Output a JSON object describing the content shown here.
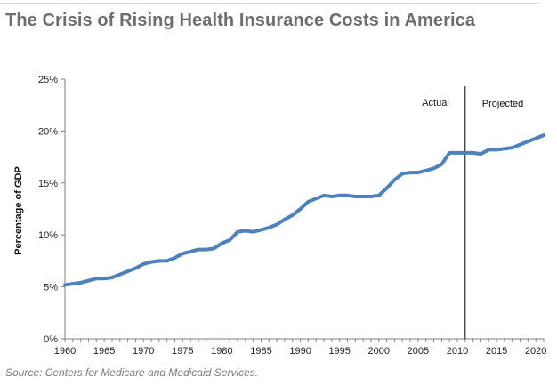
{
  "header": {
    "title": "The Crisis of Rising Health Insurance Costs in America"
  },
  "source": "Source: Centers for Medicare and Medicaid Services.",
  "colors": {
    "line": "#4f81bd",
    "title": "#6e6e6e",
    "axis": "#7f7f7f",
    "divider": "#000000",
    "source": "#7a7a7a"
  },
  "chart_data": {
    "type": "line",
    "title": "",
    "ylabel": "Percentage of GDP",
    "xlabel": "",
    "xlim": [
      1960,
      2021
    ],
    "ylim": [
      0,
      25
    ],
    "y_ticks": [
      {
        "value": 0,
        "label": "0%"
      },
      {
        "value": 5,
        "label": "5%"
      },
      {
        "value": 10,
        "label": "10%"
      },
      {
        "value": 15,
        "label": "15%"
      },
      {
        "value": 20,
        "label": "20%"
      },
      {
        "value": 25,
        "label": "25%"
      }
    ],
    "x_ticks": [
      {
        "value": 1960,
        "label": "1960"
      },
      {
        "value": 1965,
        "label": "1965"
      },
      {
        "value": 1970,
        "label": "1970"
      },
      {
        "value": 1975,
        "label": "1975"
      },
      {
        "value": 1980,
        "label": "1980"
      },
      {
        "value": 1985,
        "label": "1985"
      },
      {
        "value": 1990,
        "label": "1990"
      },
      {
        "value": 1995,
        "label": "1995"
      },
      {
        "value": 2000,
        "label": "2000"
      },
      {
        "value": 2005,
        "label": "2005"
      },
      {
        "value": 2010,
        "label": "2010"
      },
      {
        "value": 2015,
        "label": "2015"
      },
      {
        "value": 2020,
        "label": "2020"
      }
    ],
    "grid": false,
    "legend": "none",
    "divider": {
      "x": 2011,
      "left_label": "Actual",
      "right_label": "Projected"
    },
    "series": [
      {
        "x": [
          1960,
          1961,
          1962,
          1963,
          1964,
          1965,
          1966,
          1967,
          1968,
          1969,
          1970,
          1971,
          1972,
          1973,
          1974,
          1975,
          1976,
          1977,
          1978,
          1979,
          1980,
          1981,
          1982,
          1983,
          1984,
          1985,
          1986,
          1987,
          1988,
          1989,
          1990,
          1991,
          1992,
          1993,
          1994,
          1995,
          1996,
          1997,
          1998,
          1999,
          2000,
          2001,
          2002,
          2003,
          2004,
          2005,
          2006,
          2007,
          2008,
          2009,
          2010,
          2011,
          2012,
          2013,
          2014,
          2015,
          2016,
          2017,
          2018,
          2019,
          2020,
          2021
        ],
        "values": [
          5.2,
          5.3,
          5.4,
          5.6,
          5.8,
          5.8,
          5.9,
          6.2,
          6.5,
          6.8,
          7.2,
          7.4,
          7.5,
          7.5,
          7.8,
          8.2,
          8.4,
          8.6,
          8.6,
          8.7,
          9.2,
          9.5,
          10.3,
          10.4,
          10.3,
          10.5,
          10.7,
          11.0,
          11.5,
          11.9,
          12.5,
          13.2,
          13.5,
          13.8,
          13.7,
          13.8,
          13.8,
          13.7,
          13.7,
          13.7,
          13.8,
          14.5,
          15.3,
          15.9,
          16.0,
          16.0,
          16.2,
          16.4,
          16.8,
          17.9,
          17.9,
          17.9,
          17.9,
          17.8,
          18.2,
          18.2,
          18.3,
          18.4,
          18.7,
          19.0,
          19.3,
          19.6
        ]
      }
    ]
  }
}
